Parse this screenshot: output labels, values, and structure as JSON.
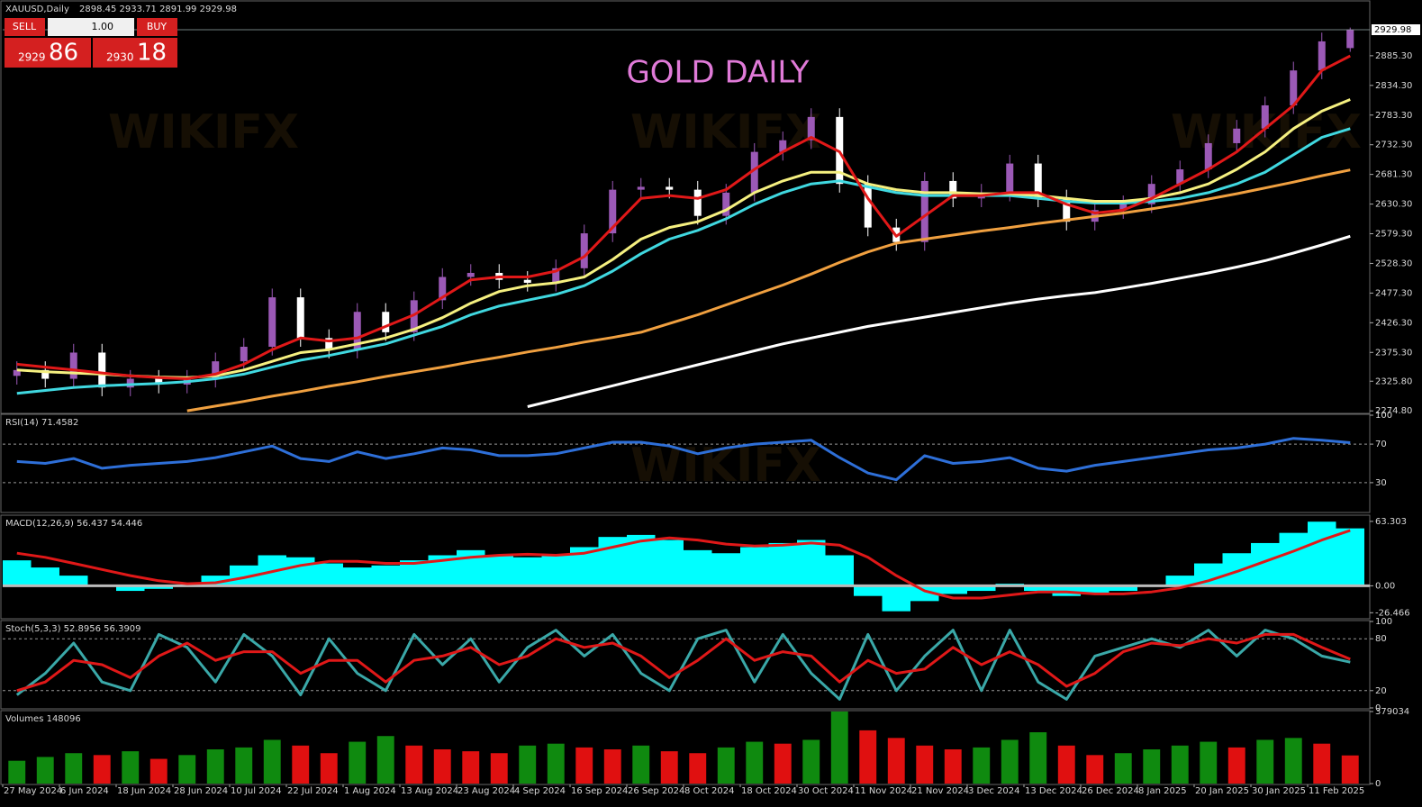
{
  "toolbar": {
    "symbol": "XAUUSD,Daily",
    "ohlc": "2898.45 2933.71 2891.99 2929.98",
    "sell": "SELL",
    "buy": "BUY",
    "lots": "1.00",
    "bid_big": "2929",
    "bid_small": "86",
    "ask_big": "2930",
    "ask_small": "18",
    "watermark": "WIKIFX"
  },
  "chart_data": [
    {
      "type": "candlestick",
      "title": "GOLD DAILY",
      "title_color": "#e07ad8",
      "bull_color": "#9b59b6",
      "bear_color": "#ffffff",
      "ylim": [
        2272,
        2978
      ],
      "yticks": [
        {
          "value": 2274.8,
          "label": "2274.80"
        },
        {
          "value": 2325.8,
          "label": "2325.80"
        },
        {
          "value": 2375.3,
          "label": "2375.30"
        },
        {
          "value": 2426.3,
          "label": "2426.30"
        },
        {
          "value": 2477.3,
          "label": "2477.30"
        },
        {
          "value": 2528.3,
          "label": "2528.30"
        },
        {
          "value": 2579.3,
          "label": "2579.30"
        },
        {
          "value": 2630.3,
          "label": "2630.30"
        },
        {
          "value": 2681.3,
          "label": "2681.30"
        },
        {
          "value": 2732.3,
          "label": "2732.30"
        },
        {
          "value": 2783.3,
          "label": "2783.30"
        },
        {
          "value": 2834.3,
          "label": "2834.30"
        },
        {
          "value": 2885.3,
          "label": "2885.30"
        }
      ],
      "price_line": 2929.98,
      "open": [
        2335,
        2345,
        2330,
        2375,
        2315,
        2330,
        2320,
        2330,
        2360,
        2385,
        2470,
        2400,
        2380,
        2445,
        2410,
        2465,
        2505,
        2512,
        2500,
        2495,
        2520,
        2580,
        2655,
        2660,
        2655,
        2610,
        2650,
        2720,
        2740,
        2780,
        2665,
        2590,
        2565,
        2670,
        2640,
        2650,
        2700,
        2640,
        2600,
        2620,
        2630,
        2665,
        2690,
        2735,
        2760,
        2800,
        2860,
        2898.45
      ],
      "high": [
        2360,
        2360,
        2390,
        2390,
        2345,
        2345,
        2345,
        2375,
        2400,
        2485,
        2485,
        2415,
        2460,
        2460,
        2480,
        2520,
        2527,
        2527,
        2515,
        2535,
        2595,
        2670,
        2675,
        2675,
        2670,
        2665,
        2735,
        2755,
        2795,
        2795,
        2680,
        2605,
        2685,
        2685,
        2665,
        2715,
        2715,
        2655,
        2635,
        2645,
        2680,
        2705,
        2750,
        2775,
        2815,
        2875,
        2925,
        2933.71
      ],
      "low": [
        2320,
        2315,
        2315,
        2300,
        2300,
        2305,
        2305,
        2315,
        2345,
        2370,
        2385,
        2365,
        2365,
        2395,
        2395,
        2450,
        2490,
        2485,
        2480,
        2480,
        2505,
        2565,
        2640,
        2640,
        2595,
        2595,
        2635,
        2705,
        2725,
        2650,
        2575,
        2550,
        2550,
        2625,
        2625,
        2635,
        2625,
        2585,
        2585,
        2605,
        2615,
        2650,
        2675,
        2720,
        2745,
        2785,
        2845,
        2891.99
      ],
      "close": [
        2345,
        2330,
        2375,
        2315,
        2330,
        2320,
        2330,
        2360,
        2385,
        2470,
        2400,
        2380,
        2445,
        2410,
        2465,
        2505,
        2512,
        2500,
        2495,
        2520,
        2580,
        2655,
        2660,
        2655,
        2610,
        2650,
        2720,
        2740,
        2780,
        2665,
        2590,
        2565,
        2670,
        2640,
        2650,
        2700,
        2640,
        2600,
        2620,
        2630,
        2665,
        2690,
        2735,
        2760,
        2800,
        2860,
        2910,
        2929.98
      ],
      "series": [
        {
          "color": "#ffffff",
          "values": [
            null,
            null,
            null,
            null,
            null,
            null,
            null,
            null,
            null,
            null,
            null,
            null,
            null,
            null,
            null,
            null,
            null,
            null,
            2282,
            2294,
            2306,
            2318,
            2330,
            2342,
            2354,
            2366,
            2378,
            2390,
            2400,
            2410,
            2420,
            2428,
            2436,
            2444,
            2452,
            2460,
            2467,
            2473,
            2478,
            2486,
            2494,
            2503,
            2512,
            2522,
            2533,
            2546,
            2560,
            2575
          ]
        },
        {
          "color": "#f0a040",
          "values": [
            null,
            null,
            null,
            null,
            null,
            null,
            2275,
            2283,
            2291,
            2300,
            2308,
            2317,
            2325,
            2334,
            2342,
            2350,
            2359,
            2367,
            2376,
            2384,
            2393,
            2401,
            2410,
            2425,
            2440,
            2457,
            2474,
            2491,
            2510,
            2530,
            2548,
            2563,
            2570,
            2577,
            2584,
            2590,
            2597,
            2603,
            2609,
            2615,
            2622,
            2630,
            2639,
            2648,
            2658,
            2668,
            2679,
            2689
          ]
        },
        {
          "color": "#40d8e0",
          "values": [
            2305,
            2310,
            2315,
            2318,
            2320,
            2322,
            2325,
            2330,
            2338,
            2350,
            2362,
            2370,
            2380,
            2390,
            2405,
            2420,
            2440,
            2455,
            2465,
            2475,
            2490,
            2515,
            2545,
            2570,
            2585,
            2605,
            2630,
            2650,
            2665,
            2670,
            2660,
            2650,
            2645,
            2645,
            2645,
            2645,
            2640,
            2635,
            2632,
            2632,
            2635,
            2640,
            2650,
            2665,
            2685,
            2715,
            2745,
            2760
          ]
        },
        {
          "color": "#f5f080",
          "values": [
            2345,
            2342,
            2340,
            2338,
            2335,
            2333,
            2332,
            2335,
            2345,
            2360,
            2375,
            2380,
            2390,
            2400,
            2415,
            2435,
            2460,
            2480,
            2490,
            2495,
            2505,
            2535,
            2570,
            2590,
            2600,
            2620,
            2650,
            2670,
            2685,
            2685,
            2665,
            2655,
            2650,
            2650,
            2648,
            2648,
            2645,
            2640,
            2635,
            2635,
            2640,
            2650,
            2665,
            2690,
            2720,
            2760,
            2790,
            2810
          ]
        },
        {
          "color": "#e01818",
          "values": [
            2355,
            2350,
            2345,
            2340,
            2335,
            2332,
            2330,
            2338,
            2355,
            2380,
            2400,
            2395,
            2400,
            2420,
            2440,
            2470,
            2500,
            2505,
            2505,
            2515,
            2540,
            2590,
            2640,
            2645,
            2640,
            2655,
            2690,
            2720,
            2745,
            2720,
            2640,
            2575,
            2610,
            2645,
            2645,
            2650,
            2650,
            2630,
            2615,
            2620,
            2640,
            2665,
            2690,
            2720,
            2760,
            2800,
            2860,
            2885
          ]
        }
      ]
    },
    {
      "type": "line",
      "label": "RSI(14) 71.4582",
      "ylim": [
        0,
        100
      ],
      "yticks": [
        30,
        70,
        100
      ],
      "grid": true,
      "series": [
        {
          "color": "#2e6fd8",
          "values": [
            52,
            50,
            55,
            45,
            48,
            50,
            52,
            56,
            62,
            68,
            55,
            52,
            62,
            55,
            60,
            66,
            64,
            58,
            58,
            60,
            66,
            72,
            72,
            68,
            60,
            66,
            70,
            72,
            74,
            56,
            40,
            33,
            58,
            50,
            52,
            56,
            45,
            42,
            48,
            52,
            56,
            60,
            64,
            66,
            70,
            76,
            74,
            71.4582
          ]
        }
      ]
    },
    {
      "type": "macd",
      "label": "MACD(12,26,9) 56.437 54.446",
      "ylim": [
        -31.5,
        68.5
      ],
      "yticks": [
        63.303,
        {
          "value": 0,
          "label": "0.00"
        },
        -26.466
      ],
      "zero_line": true,
      "histogram": {
        "color": "#00ffff",
        "values": [
          25,
          18,
          10,
          0,
          -5,
          -3,
          0,
          10,
          20,
          30,
          28,
          22,
          18,
          20,
          25,
          30,
          35,
          30,
          28,
          30,
          38,
          48,
          50,
          45,
          35,
          32,
          38,
          42,
          45,
          30,
          -10,
          -25,
          -15,
          -8,
          -5,
          2,
          -5,
          -10,
          -8,
          -5,
          0,
          10,
          22,
          32,
          42,
          52,
          63,
          56.437
        ]
      },
      "series": [
        {
          "color": "#e01818",
          "values": [
            32,
            28,
            22,
            16,
            10,
            5,
            2,
            3,
            8,
            14,
            20,
            24,
            24,
            22,
            22,
            25,
            28,
            30,
            31,
            30,
            32,
            38,
            44,
            47,
            45,
            41,
            39,
            40,
            42,
            40,
            28,
            10,
            -5,
            -12,
            -12,
            -9,
            -6,
            -6,
            -8,
            -8,
            -6,
            -2,
            5,
            14,
            24,
            34,
            45,
            54.446
          ]
        }
      ]
    },
    {
      "type": "line",
      "label": "Stoch(5,3,3) 52.8956 56.3909",
      "ylim": [
        0,
        100
      ],
      "yticks": [
        0,
        20,
        80,
        100
      ],
      "grid": true,
      "series": [
        {
          "color": "#3aa8a8",
          "values": [
            15,
            40,
            75,
            30,
            20,
            85,
            70,
            30,
            85,
            60,
            15,
            80,
            40,
            20,
            85,
            50,
            80,
            30,
            70,
            90,
            60,
            85,
            40,
            20,
            80,
            90,
            30,
            85,
            40,
            10,
            85,
            20,
            60,
            90,
            20,
            90,
            30,
            10,
            60,
            70,
            80,
            70,
            90,
            60,
            90,
            80,
            60,
            52.8956
          ]
        },
        {
          "color": "#e01818",
          "values": [
            20,
            30,
            55,
            50,
            35,
            60,
            75,
            55,
            65,
            65,
            40,
            55,
            55,
            30,
            55,
            60,
            70,
            50,
            60,
            80,
            70,
            75,
            60,
            35,
            55,
            80,
            55,
            65,
            60,
            30,
            55,
            40,
            45,
            70,
            50,
            65,
            50,
            25,
            40,
            65,
            75,
            72,
            80,
            75,
            85,
            85,
            70,
            56.3909
          ]
        }
      ]
    },
    {
      "type": "volume",
      "label": "Volumes 148096",
      "ylim": [
        0,
        379034
      ],
      "yticks": [
        0,
        379034
      ],
      "up_color": "#0f8a0f",
      "down_color": "#e01010",
      "values": [
        120000,
        140000,
        160000,
        150000,
        170000,
        130000,
        150000,
        180000,
        190000,
        230000,
        200000,
        160000,
        220000,
        250000,
        200000,
        180000,
        170000,
        160000,
        200000,
        210000,
        190000,
        180000,
        200000,
        170000,
        160000,
        190000,
        220000,
        210000,
        230000,
        379034,
        280000,
        240000,
        200000,
        180000,
        190000,
        230000,
        270000,
        200000,
        150000,
        160000,
        180000,
        200000,
        220000,
        190000,
        230000,
        240000,
        210000,
        148096
      ],
      "categories": [
        "27 May 2024",
        null,
        "6 Jun 2024",
        null,
        "18 Jun 2024",
        null,
        "28 Jun 2024",
        null,
        "10 Jul 2024",
        null,
        "22 Jul 2024",
        null,
        "1 Aug 2024",
        null,
        "13 Aug 2024",
        null,
        "23 Aug 2024",
        null,
        "4 Sep 2024",
        null,
        "16 Sep 2024",
        null,
        "26 Sep 2024",
        null,
        "8 Oct 2024",
        null,
        "18 Oct 2024",
        null,
        "30 Oct 2024",
        null,
        "11 Nov 2024",
        null,
        "21 Nov 2024",
        null,
        "3 Dec 2024",
        null,
        "13 Dec 2024",
        null,
        "26 Dec 2024",
        null,
        "8 Jan 2025",
        null,
        "20 Jan 2025",
        null,
        "30 Jan 2025",
        null,
        "11 Feb 2025",
        null
      ]
    }
  ]
}
